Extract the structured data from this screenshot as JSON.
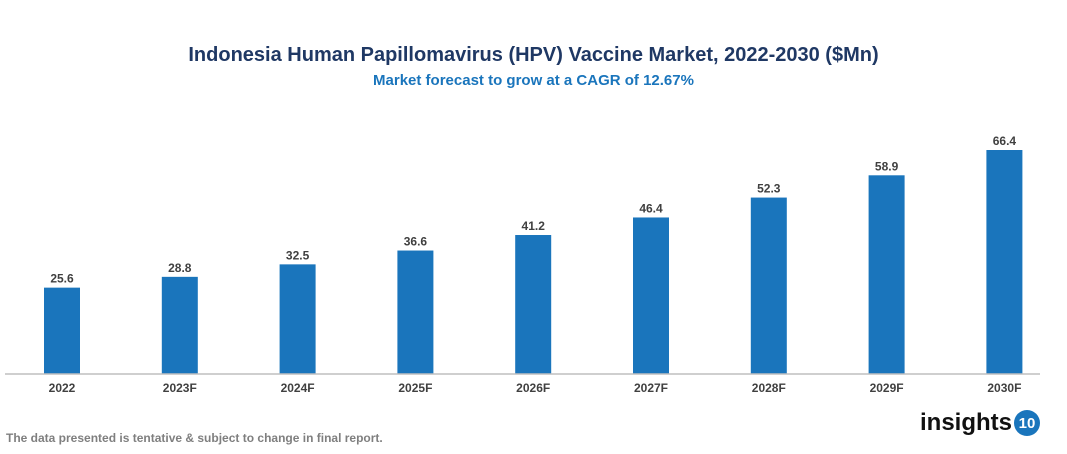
{
  "chart_data": {
    "type": "bar",
    "title": "Indonesia Human Papillomavirus (HPV) Vaccine Market, 2022-2030 ($Mn)",
    "subtitle": "Market forecast to grow at a CAGR of 12.67%",
    "categories": [
      "2022",
      "2023F",
      "2024F",
      "2025F",
      "2026F",
      "2027F",
      "2028F",
      "2029F",
      "2030F"
    ],
    "values": [
      25.6,
      28.8,
      32.5,
      36.6,
      41.2,
      46.4,
      52.3,
      58.9,
      66.4
    ],
    "xlabel": "",
    "ylabel": "",
    "ylim": [
      0,
      66.4
    ],
    "grid": false,
    "bar_color": "#1a75bc"
  },
  "footer": {
    "note": "The data presented is tentative & subject to change in final report.",
    "logo_text": "insights",
    "logo_number": "10"
  }
}
